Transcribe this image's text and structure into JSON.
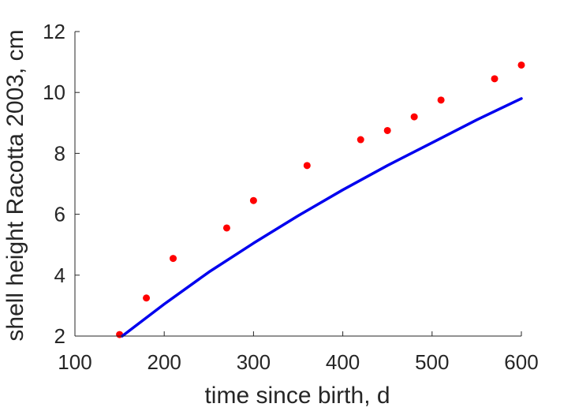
{
  "chart_data": {
    "type": "scatter",
    "title": "",
    "xlabel": "time since birth, d",
    "ylabel": "shell height Racotta 2003, cm",
    "xlim": [
      100,
      600
    ],
    "ylim": [
      2,
      12
    ],
    "xticks": [
      100,
      200,
      300,
      400,
      500,
      600
    ],
    "yticks": [
      2,
      4,
      6,
      8,
      10,
      12
    ],
    "grid": false,
    "series": [
      {
        "kind": "scatter",
        "color": "#ff0000",
        "x": [
          150,
          180,
          210,
          270,
          300,
          360,
          420,
          450,
          480,
          510,
          570,
          600
        ],
        "y": [
          2.05,
          3.25,
          4.55,
          5.55,
          6.45,
          7.6,
          8.45,
          8.75,
          9.2,
          9.75,
          10.45,
          10.9
        ]
      },
      {
        "kind": "line",
        "color": "#0000ee",
        "x": [
          153,
          200,
          250,
          300,
          350,
          400,
          450,
          500,
          550,
          600
        ],
        "y": [
          2.0,
          3.05,
          4.1,
          5.05,
          5.95,
          6.8,
          7.6,
          8.35,
          9.1,
          9.8
        ]
      }
    ]
  }
}
